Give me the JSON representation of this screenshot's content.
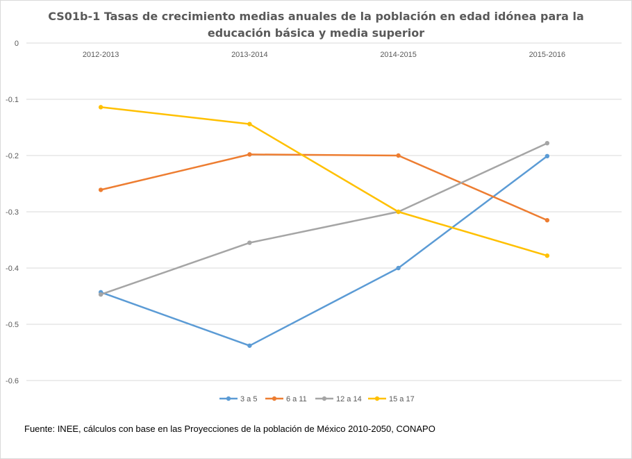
{
  "chart_data": {
    "type": "line",
    "title_lines": [
      "CS01b-1 Tasas de crecimiento medias anuales de la población en edad idónea para la",
      "educación básica y media superior"
    ],
    "categories": [
      "2012-2013",
      "2013-2014",
      "2014-2015",
      "2015-2016"
    ],
    "y_ticks": [
      "0",
      "-0.1",
      "-0.2",
      "-0.3",
      "-0.4",
      "-0.5",
      "-0.6"
    ],
    "ylim": [
      -0.6,
      0
    ],
    "x_axis_position": "top",
    "grid": true,
    "legend_position": "bottom",
    "series": [
      {
        "name": "3 a 5",
        "color": "#5b9bd5",
        "values": [
          -0.443,
          -0.538,
          -0.4,
          -0.201
        ]
      },
      {
        "name": "6 a 11",
        "color": "#ed7d31",
        "values": [
          -0.261,
          -0.198,
          -0.2,
          -0.315
        ]
      },
      {
        "name": "12 a 14",
        "color": "#a5a5a5",
        "values": [
          -0.447,
          -0.355,
          -0.3,
          -0.178
        ]
      },
      {
        "name": "15 a 17",
        "color": "#ffc000",
        "values": [
          -0.114,
          -0.144,
          -0.3,
          -0.378
        ]
      }
    ],
    "source": "Fuente: INEE, cálculos con base en las Proyecciones de la población de México 2010-2050,  CONAPO"
  }
}
